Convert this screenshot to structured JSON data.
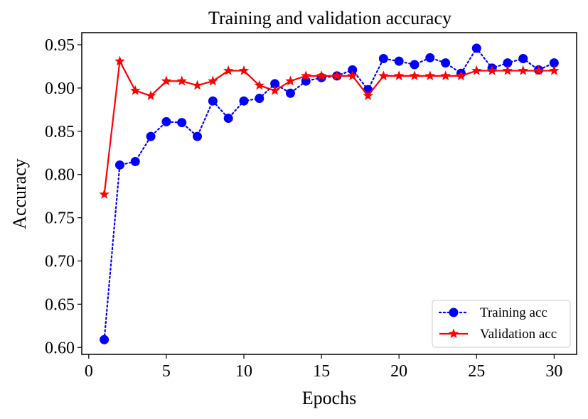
{
  "chart_data": {
    "type": "line",
    "title": "Training and validation accuracy",
    "xlabel": "Epochs",
    "ylabel": "Accuracy",
    "xlim": [
      -0.45,
      31.45
    ],
    "ylim": [
      0.592,
      0.964
    ],
    "xticks": [
      0,
      5,
      10,
      15,
      20,
      25,
      30
    ],
    "yticks": [
      0.6,
      0.65,
      0.7,
      0.75,
      0.8,
      0.85,
      0.9,
      0.95
    ],
    "xtick_labels": [
      "0",
      "5",
      "10",
      "15",
      "20",
      "25",
      "30"
    ],
    "ytick_labels": [
      "0.60",
      "0.65",
      "0.70",
      "0.75",
      "0.80",
      "0.85",
      "0.90",
      "0.95"
    ],
    "grid": false,
    "legend_position": "bottom-right",
    "x": [
      1,
      2,
      3,
      4,
      5,
      6,
      7,
      8,
      9,
      10,
      11,
      12,
      13,
      14,
      15,
      16,
      17,
      18,
      19,
      20,
      21,
      22,
      23,
      24,
      25,
      26,
      27,
      28,
      29,
      30
    ],
    "series": [
      {
        "name": "Training acc",
        "color": "#0000ff",
        "line_style": "dotted",
        "marker": "circle",
        "values": [
          0.609,
          0.811,
          0.815,
          0.844,
          0.861,
          0.86,
          0.844,
          0.885,
          0.865,
          0.885,
          0.888,
          0.905,
          0.894,
          0.908,
          0.912,
          0.914,
          0.921,
          0.898,
          0.934,
          0.931,
          0.927,
          0.935,
          0.929,
          0.917,
          0.946,
          0.923,
          0.929,
          0.934,
          0.921,
          0.929
        ]
      },
      {
        "name": "Validation acc",
        "color": "#ff0000",
        "line_style": "solid",
        "marker": "star",
        "values": [
          0.777,
          0.931,
          0.897,
          0.891,
          0.908,
          0.908,
          0.903,
          0.908,
          0.92,
          0.92,
          0.903,
          0.897,
          0.908,
          0.914,
          0.914,
          0.914,
          0.914,
          0.891,
          0.914,
          0.914,
          0.914,
          0.914,
          0.914,
          0.914,
          0.92,
          0.92,
          0.92,
          0.92,
          0.92,
          0.92
        ]
      }
    ]
  }
}
